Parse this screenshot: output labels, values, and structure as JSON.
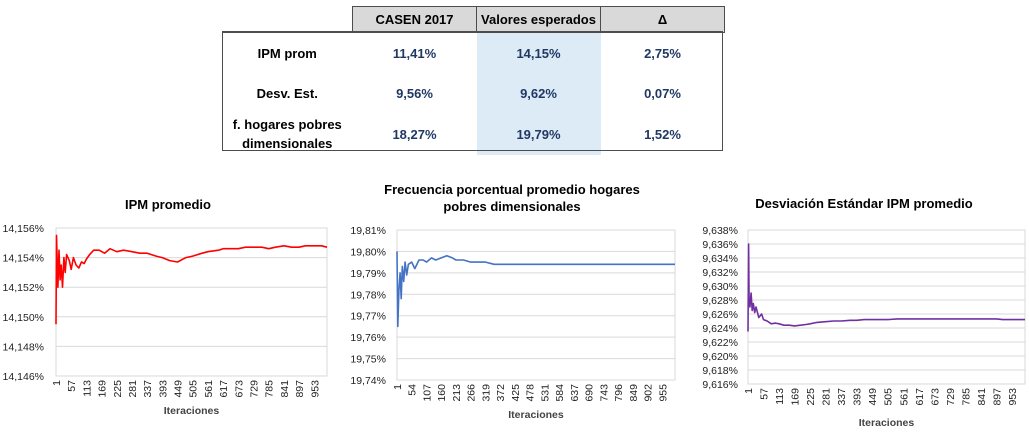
{
  "table": {
    "headers": [
      "",
      "CASEN 2017",
      "Valores esperados",
      "Δ"
    ],
    "rows": [
      {
        "label": "IPM prom",
        "casen": "11,41%",
        "esperados": "14,15%",
        "delta": "2,75%"
      },
      {
        "label": "Desv. Est.",
        "casen": "9,56%",
        "esperados": "9,62%",
        "delta": "0,07%"
      },
      {
        "label": "f. hogares pobres dimensionales",
        "casen": "18,27%",
        "esperados": "19,79%",
        "delta": "1,52%"
      }
    ],
    "colors": {
      "header_bg": "#d9d9d9",
      "highlight_bg": "#ddebf7",
      "value_text": "#1f3864"
    }
  },
  "chart_data": [
    {
      "type": "line",
      "title": "IPM promedio",
      "xlabel": "Iteraciones",
      "ylabel": "",
      "color": "#ff0000",
      "ylim": [
        14.146,
        14.156
      ],
      "yticks": [
        "14,146%",
        "14,148%",
        "14,150%",
        "14,152%",
        "14,154%",
        "14,156%"
      ],
      "xticks": [
        "1",
        "57",
        "113",
        "169",
        "225",
        "281",
        "337",
        "393",
        "449",
        "505",
        "561",
        "617",
        "673",
        "729",
        "785",
        "841",
        "897",
        "953"
      ],
      "xlim": [
        1,
        1000
      ],
      "series": [
        {
          "x": [
            1,
            3,
            5,
            8,
            12,
            16,
            20,
            25,
            30,
            35,
            40,
            50,
            57,
            65,
            75,
            85,
            95,
            105,
            113,
            125,
            140,
            160,
            180,
            200,
            225,
            250,
            281,
            310,
            337,
            370,
            393,
            420,
            449,
            480,
            505,
            540,
            561,
            600,
            617,
            650,
            673,
            700,
            729,
            760,
            785,
            810,
            841,
            870,
            897,
            920,
            953,
            980,
            1000
          ],
          "values": [
            14.1495,
            14.1555,
            14.154,
            14.152,
            14.1545,
            14.1525,
            14.1535,
            14.152,
            14.154,
            14.153,
            14.1542,
            14.1538,
            14.1532,
            14.154,
            14.1535,
            14.1533,
            14.1537,
            14.1536,
            14.1539,
            14.1542,
            14.1545,
            14.1545,
            14.1543,
            14.1546,
            14.1544,
            14.1545,
            14.1544,
            14.1543,
            14.1543,
            14.1541,
            14.154,
            14.1538,
            14.1537,
            14.154,
            14.1541,
            14.1543,
            14.1544,
            14.1545,
            14.1546,
            14.1546,
            14.1546,
            14.1547,
            14.1547,
            14.1547,
            14.1546,
            14.1547,
            14.1548,
            14.1547,
            14.1547,
            14.1548,
            14.1548,
            14.1548,
            14.1547
          ]
        }
      ]
    },
    {
      "type": "line",
      "title": "Frecuencia porcentual promedio hogares pobres dimensionales",
      "xlabel": "Iteraciones",
      "ylabel": "",
      "color": "#4472c4",
      "ylim": [
        19.74,
        19.81
      ],
      "yticks": [
        "19,74%",
        "19,75%",
        "19,76%",
        "19,77%",
        "19,78%",
        "19,79%",
        "19,80%",
        "19,81%"
      ],
      "xticks": [
        "1",
        "54",
        "107",
        "160",
        "213",
        "266",
        "319",
        "372",
        "425",
        "478",
        "531",
        "584",
        "637",
        "690",
        "743",
        "796",
        "849",
        "902",
        "955"
      ],
      "xlim": [
        1,
        1000
      ],
      "series": [
        {
          "x": [
            1,
            4,
            8,
            12,
            16,
            20,
            25,
            30,
            36,
            42,
            54,
            65,
            80,
            95,
            107,
            125,
            140,
            160,
            180,
            200,
            213,
            240,
            266,
            290,
            319,
            350,
            372,
            400,
            425,
            450,
            478,
            500,
            531,
            560,
            584,
            610,
            637,
            660,
            690,
            720,
            743,
            770,
            796,
            820,
            849,
            880,
            902,
            930,
            955,
            980,
            1000
          ],
          "values": [
            19.8,
            19.765,
            19.782,
            19.79,
            19.778,
            19.793,
            19.786,
            19.795,
            19.789,
            19.794,
            19.795,
            19.792,
            19.796,
            19.796,
            19.795,
            19.797,
            19.796,
            19.797,
            19.798,
            19.797,
            19.796,
            19.796,
            19.795,
            19.795,
            19.795,
            19.794,
            19.794,
            19.794,
            19.794,
            19.794,
            19.794,
            19.794,
            19.794,
            19.794,
            19.794,
            19.794,
            19.794,
            19.794,
            19.794,
            19.794,
            19.794,
            19.794,
            19.794,
            19.794,
            19.794,
            19.794,
            19.794,
            19.794,
            19.794,
            19.794,
            19.794
          ]
        }
      ]
    },
    {
      "type": "line",
      "title": "Desviación Estándar IPM promedio",
      "xlabel": "Iteraciones",
      "ylabel": "",
      "color": "#7030a0",
      "ylim": [
        9.616,
        9.638
      ],
      "yticks": [
        "9,616%",
        "9,618%",
        "9,620%",
        "9,622%",
        "9,624%",
        "9,626%",
        "9,628%",
        "9,630%",
        "9,632%",
        "9,634%",
        "9,636%",
        "9,638%"
      ],
      "xticks": [
        "1",
        "57",
        "113",
        "169",
        "225",
        "281",
        "337",
        "393",
        "449",
        "505",
        "561",
        "617",
        "673",
        "729",
        "785",
        "841",
        "897",
        "953"
      ],
      "xlim": [
        1,
        1000
      ],
      "series": [
        {
          "x": [
            1,
            3,
            5,
            8,
            12,
            16,
            20,
            25,
            30,
            40,
            50,
            57,
            70,
            85,
            100,
            113,
            130,
            150,
            169,
            190,
            210,
            225,
            250,
            281,
            310,
            337,
            370,
            393,
            420,
            449,
            480,
            505,
            540,
            561,
            600,
            617,
            650,
            673,
            700,
            729,
            760,
            785,
            810,
            841,
            870,
            897,
            920,
            953,
            980,
            1000
          ],
          "values": [
            9.6235,
            9.636,
            9.628,
            9.627,
            9.629,
            9.6265,
            9.6275,
            9.6262,
            9.627,
            9.6255,
            9.626,
            9.6252,
            9.625,
            9.6246,
            9.6247,
            9.6246,
            9.6244,
            9.6244,
            9.6243,
            9.6244,
            9.6245,
            9.6246,
            9.6248,
            9.6249,
            9.625,
            9.625,
            9.6251,
            9.6251,
            9.6252,
            9.6252,
            9.6252,
            9.6252,
            9.6253,
            9.6253,
            9.6253,
            9.6253,
            9.6253,
            9.6253,
            9.6253,
            9.6253,
            9.6253,
            9.6253,
            9.6253,
            9.6253,
            9.6253,
            9.6253,
            9.6252,
            9.6252,
            9.6252,
            9.6252
          ]
        }
      ]
    }
  ]
}
